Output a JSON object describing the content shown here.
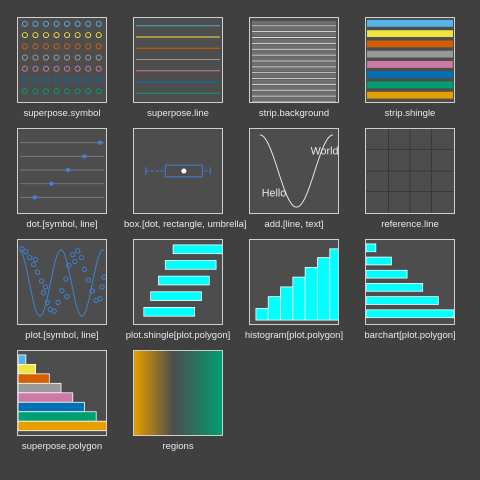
{
  "panels": [
    {
      "id": "superpose-symbol",
      "label": "superpose.symbol"
    },
    {
      "id": "superpose-line",
      "label": "superpose.line"
    },
    {
      "id": "strip-background",
      "label": "strip.background"
    },
    {
      "id": "strip-shingle",
      "label": "strip.shingle"
    },
    {
      "id": "dot-symbol-line",
      "label": "dot.[symbol, line]"
    },
    {
      "id": "box-dot-rect-umbrella",
      "label": "box.[dot, rectangle, umbrella]"
    },
    {
      "id": "add-line-text",
      "label": "add.[line, text]",
      "texts": {
        "t1": "World",
        "t2": "Hello"
      }
    },
    {
      "id": "reference-line",
      "label": "reference.line"
    },
    {
      "id": "plot-symbol-line",
      "label": "plot.[symbol, line]"
    },
    {
      "id": "plot-shingle-polygon",
      "label": "plot.shingle[plot.polygon]"
    },
    {
      "id": "histogram-plot-polygon",
      "label": "histogram[plot.polygon]"
    },
    {
      "id": "barchart-plot-polygon",
      "label": "barchart[plot.polygon]"
    },
    {
      "id": "superpose-polygon",
      "label": "superpose.polygon"
    },
    {
      "id": "regions",
      "label": "regions"
    }
  ],
  "colors": {
    "panel_bg": "#4d4d4d",
    "border": "#cfcfcf",
    "accent": "#00ffff",
    "blue": "#3c83d8",
    "palette": [
      "#56b4e9",
      "#f0e442",
      "#d55e00",
      "#999999",
      "#cc79a7",
      "#0072b2",
      "#009e73",
      "#e69f00"
    ]
  },
  "icons": {
    "superpose-symbol": "circle-grid-icon",
    "superpose-line": "colored-lines-icon",
    "strip-background": "strip-lines-icon",
    "strip-shingle": "colored-strips-icon",
    "dot-symbol-line": "dotplot-icon",
    "box-dot-rect-umbrella": "boxplot-icon",
    "add-line-text": "sine-text-icon",
    "reference-line": "grid-icon",
    "plot-symbol-line": "scatter-curve-icon",
    "plot-shingle-polygon": "shingle-bars-icon",
    "histogram-plot-polygon": "histogram-icon",
    "barchart-plot-polygon": "barchart-icon",
    "superpose-polygon": "stacked-colors-icon",
    "regions": "gradient-icon"
  }
}
